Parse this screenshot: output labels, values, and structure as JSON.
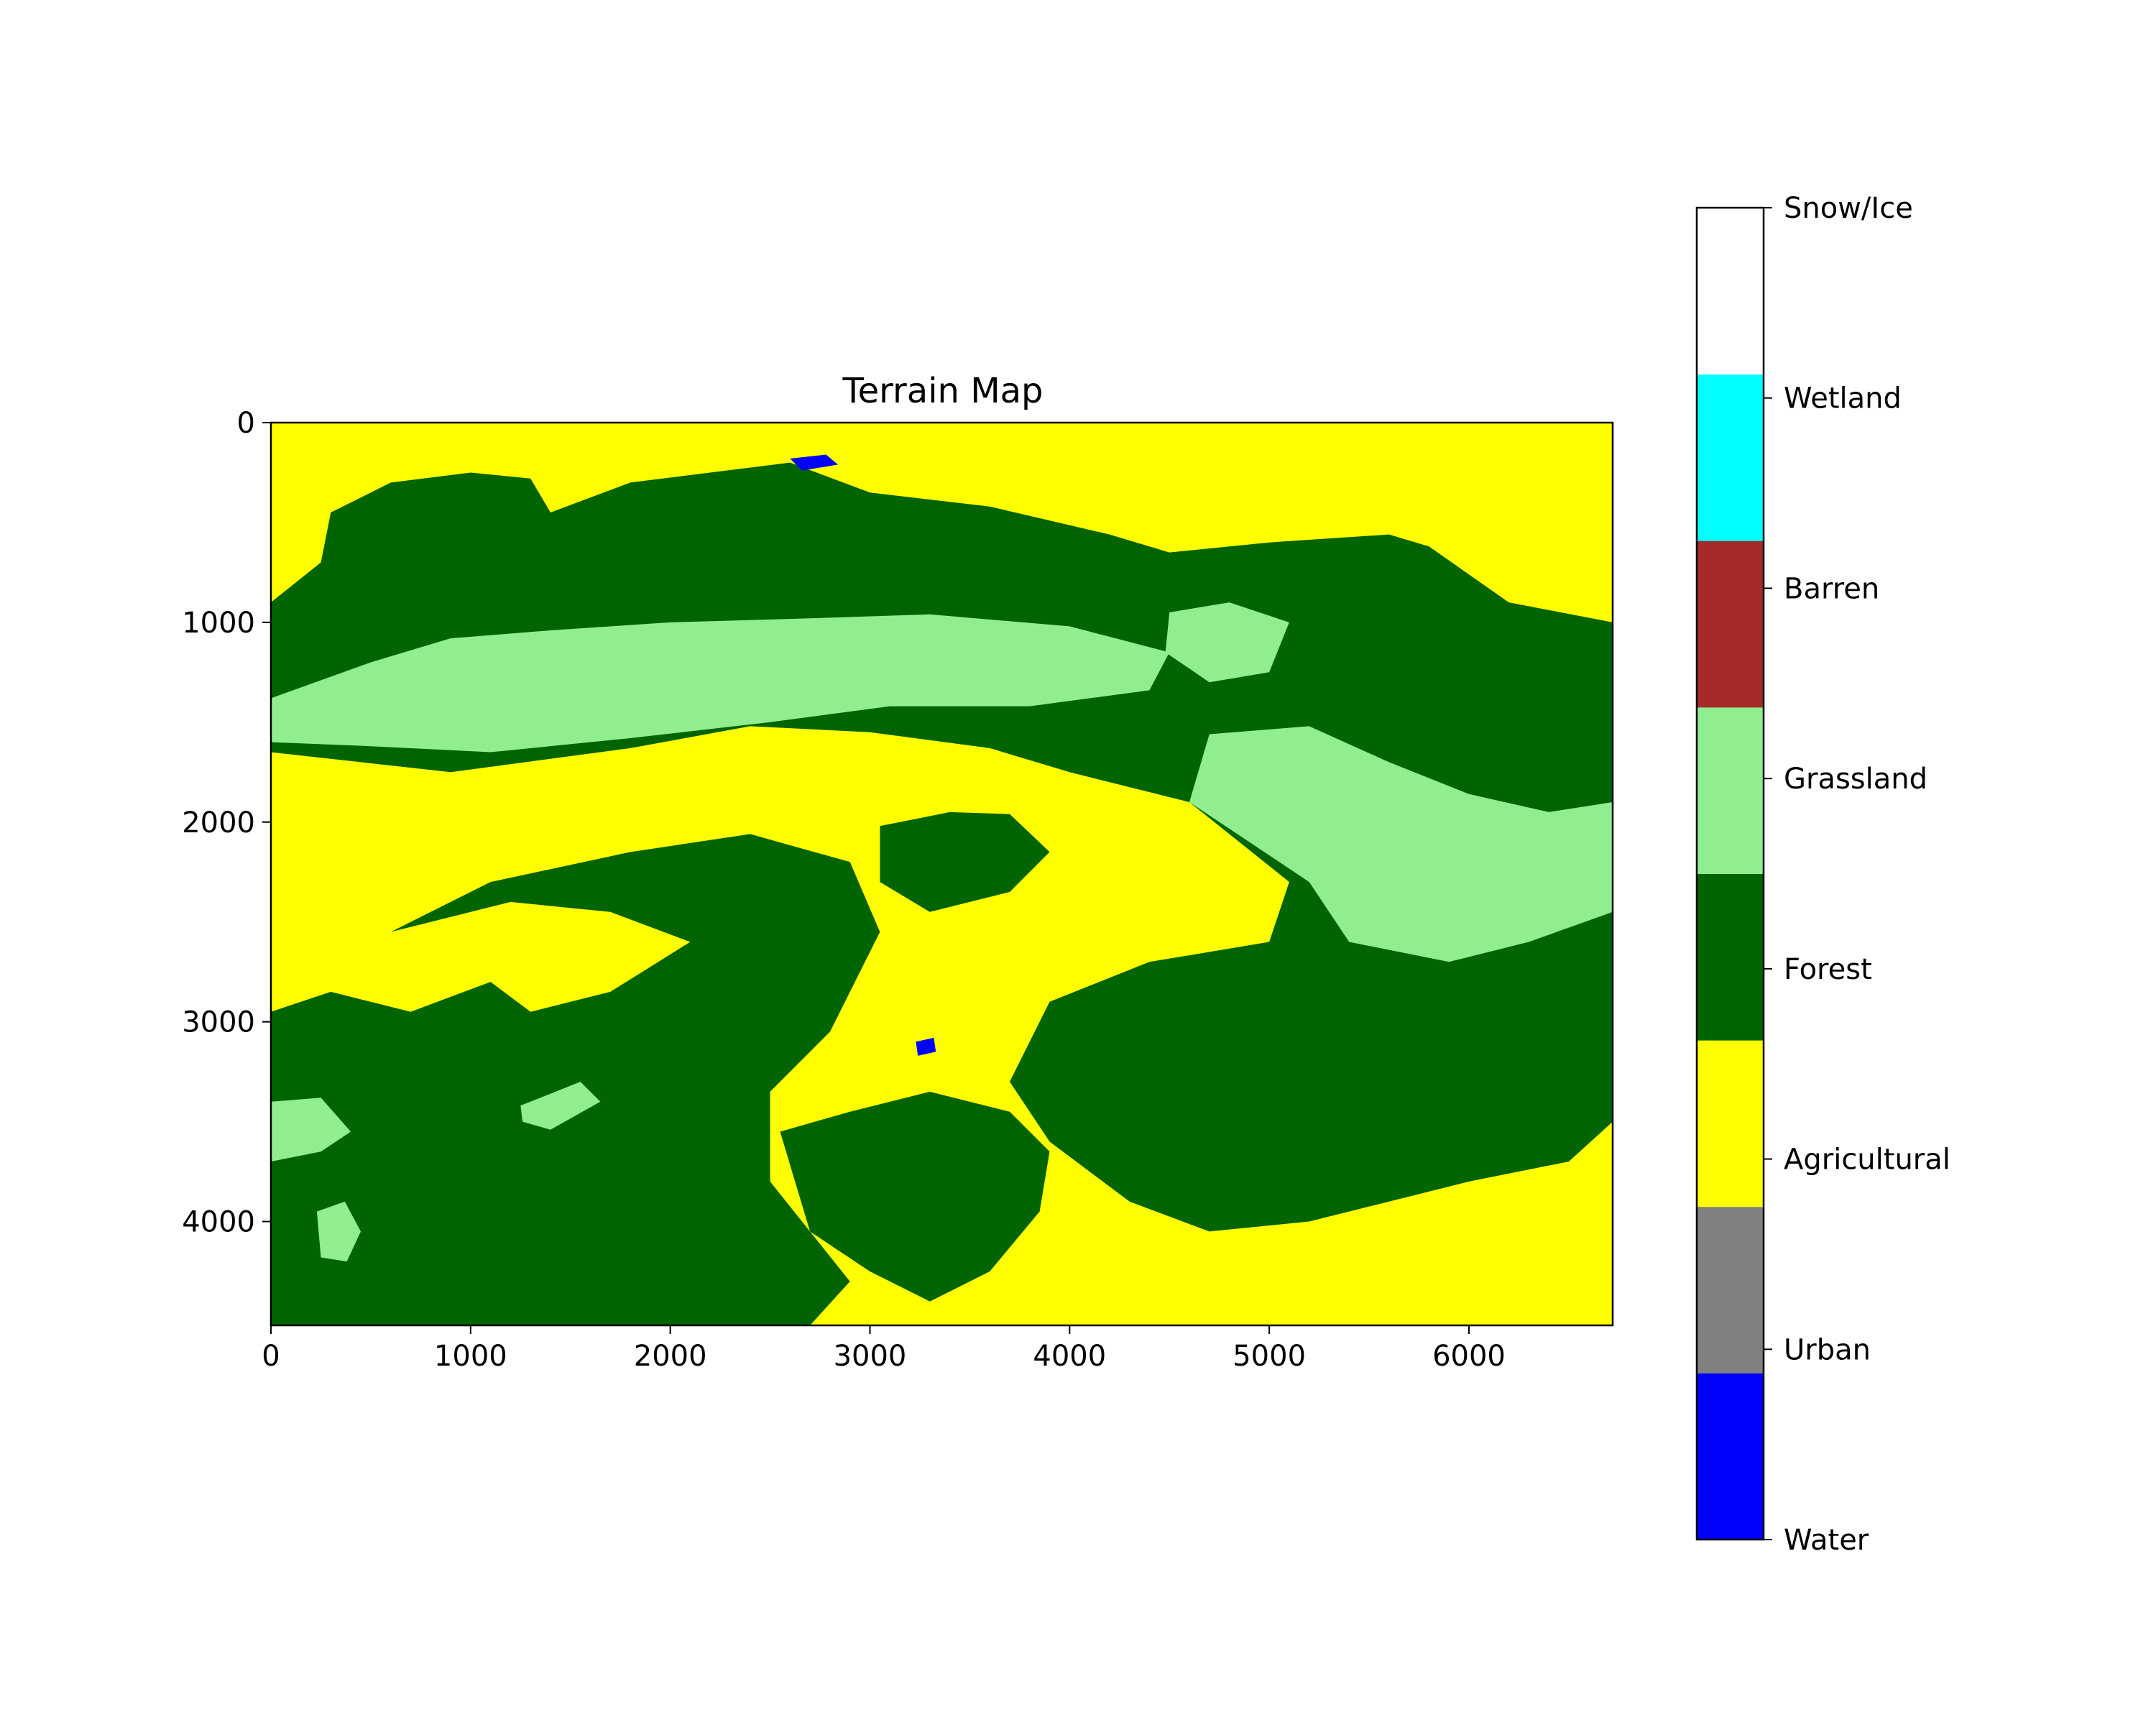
{
  "chart_data": {
    "type": "heatmap",
    "title": "Terrain Map",
    "xlabel": "",
    "ylabel": "",
    "xlim": [
      0,
      6720
    ],
    "ylim": [
      4520,
      0
    ],
    "x_ticks": [
      0,
      1000,
      2000,
      3000,
      4000,
      5000,
      6000
    ],
    "y_ticks": [
      0,
      1000,
      2000,
      3000,
      4000
    ],
    "x_tick_labels": [
      "0",
      "1000",
      "2000",
      "3000",
      "4000",
      "5000",
      "6000"
    ],
    "y_tick_labels": [
      "0",
      "1000",
      "2000",
      "3000",
      "4000"
    ],
    "grid": false,
    "colorbar": {
      "classes": [
        {
          "label": "Water",
          "color": "#0000ff"
        },
        {
          "label": "Urban",
          "color": "#808080"
        },
        {
          "label": "Agricultural",
          "color": "#ffff00"
        },
        {
          "label": "Forest",
          "color": "#006400"
        },
        {
          "label": "Grassland",
          "color": "#90ee90"
        },
        {
          "label": "Barren",
          "color": "#a52a2a"
        },
        {
          "label": "Wetland",
          "color": "#00ffff"
        },
        {
          "label": "Snow/Ice",
          "color": "#ffffff"
        }
      ]
    },
    "regions": [
      {
        "class": "Forest",
        "points": [
          [
            0,
            900
          ],
          [
            250,
            700
          ],
          [
            300,
            450
          ],
          [
            600,
            300
          ],
          [
            1000,
            250
          ],
          [
            1300,
            280
          ],
          [
            1400,
            450
          ],
          [
            1800,
            300
          ],
          [
            2600,
            200
          ],
          [
            3000,
            350
          ],
          [
            3600,
            420
          ],
          [
            4200,
            560
          ],
          [
            4500,
            650
          ],
          [
            5000,
            600
          ],
          [
            5600,
            560
          ],
          [
            5800,
            620
          ],
          [
            6200,
            900
          ],
          [
            6720,
            1000
          ],
          [
            6720,
            3500
          ],
          [
            6500,
            3700
          ],
          [
            6000,
            3800
          ],
          [
            5600,
            3900
          ],
          [
            5200,
            4000
          ],
          [
            4700,
            4050
          ],
          [
            4300,
            3900
          ],
          [
            3900,
            3600
          ],
          [
            3700,
            3300
          ],
          [
            3900,
            2900
          ],
          [
            4400,
            2700
          ],
          [
            5000,
            2600
          ],
          [
            5100,
            2300
          ],
          [
            4600,
            1900
          ],
          [
            4000,
            1750
          ],
          [
            3600,
            1630
          ],
          [
            3000,
            1550
          ],
          [
            2400,
            1520
          ],
          [
            1800,
            1630
          ],
          [
            900,
            1750
          ],
          [
            0,
            1650
          ]
        ]
      },
      {
        "class": "Forest",
        "points": [
          [
            600,
            2550
          ],
          [
            1100,
            2300
          ],
          [
            1800,
            2150
          ],
          [
            2400,
            2060
          ],
          [
            2900,
            2200
          ],
          [
            3050,
            2550
          ],
          [
            2800,
            3050
          ],
          [
            2500,
            3350
          ],
          [
            2500,
            3800
          ],
          [
            2700,
            4050
          ],
          [
            2900,
            4300
          ],
          [
            2700,
            4520
          ],
          [
            0,
            4520
          ],
          [
            0,
            2950
          ],
          [
            300,
            2850
          ],
          [
            700,
            2950
          ],
          [
            1100,
            2800
          ],
          [
            1300,
            2950
          ],
          [
            1700,
            2850
          ],
          [
            2100,
            2600
          ],
          [
            1700,
            2450
          ],
          [
            1200,
            2400
          ]
        ]
      },
      {
        "class": "Forest",
        "points": [
          [
            2550,
            3550
          ],
          [
            2900,
            3450
          ],
          [
            3300,
            3350
          ],
          [
            3700,
            3450
          ],
          [
            3900,
            3650
          ],
          [
            3850,
            3950
          ],
          [
            3600,
            4250
          ],
          [
            3300,
            4400
          ],
          [
            3000,
            4250
          ],
          [
            2700,
            4050
          ]
        ]
      },
      {
        "class": "Forest",
        "points": [
          [
            3050,
            2020
          ],
          [
            3400,
            1950
          ],
          [
            3700,
            1960
          ],
          [
            3900,
            2150
          ],
          [
            3700,
            2350
          ],
          [
            3300,
            2450
          ],
          [
            3050,
            2300
          ]
        ]
      },
      {
        "class": "Grassland",
        "points": [
          [
            0,
            1380
          ],
          [
            500,
            1200
          ],
          [
            900,
            1080
          ],
          [
            1400,
            1040
          ],
          [
            2000,
            1000
          ],
          [
            2700,
            980
          ],
          [
            3300,
            960
          ],
          [
            4000,
            1020
          ],
          [
            4500,
            1150
          ],
          [
            4400,
            1340
          ],
          [
            3800,
            1420
          ],
          [
            3100,
            1420
          ],
          [
            2500,
            1500
          ],
          [
            1800,
            1580
          ],
          [
            1100,
            1650
          ],
          [
            500,
            1620
          ],
          [
            0,
            1600
          ]
        ]
      },
      {
        "class": "Grassland",
        "points": [
          [
            4700,
            1560
          ],
          [
            5200,
            1520
          ],
          [
            5600,
            1700
          ],
          [
            6000,
            1860
          ],
          [
            6400,
            1950
          ],
          [
            6720,
            1900
          ],
          [
            6720,
            2450
          ],
          [
            6300,
            2600
          ],
          [
            5900,
            2700
          ],
          [
            5400,
            2600
          ],
          [
            5200,
            2300
          ],
          [
            4900,
            2100
          ],
          [
            4600,
            1900
          ]
        ]
      },
      {
        "class": "Grassland",
        "points": [
          [
            4500,
            950
          ],
          [
            4800,
            900
          ],
          [
            5100,
            1000
          ],
          [
            5000,
            1250
          ],
          [
            4700,
            1300
          ],
          [
            4480,
            1150
          ]
        ]
      },
      {
        "class": "Grassland",
        "points": [
          [
            0,
            3400
          ],
          [
            250,
            3380
          ],
          [
            400,
            3550
          ],
          [
            250,
            3650
          ],
          [
            0,
            3700
          ]
        ]
      },
      {
        "class": "Grassland",
        "points": [
          [
            230,
            3950
          ],
          [
            370,
            3900
          ],
          [
            450,
            4050
          ],
          [
            380,
            4200
          ],
          [
            250,
            4180
          ]
        ]
      },
      {
        "class": "Grassland",
        "points": [
          [
            1250,
            3420
          ],
          [
            1550,
            3300
          ],
          [
            1650,
            3400
          ],
          [
            1400,
            3540
          ],
          [
            1260,
            3500
          ]
        ]
      },
      {
        "class": "Water",
        "points": [
          [
            2600,
            180
          ],
          [
            2780,
            160
          ],
          [
            2840,
            210
          ],
          [
            2660,
            240
          ]
        ]
      },
      {
        "class": "Water",
        "points": [
          [
            3230,
            3100
          ],
          [
            3320,
            3080
          ],
          [
            3330,
            3150
          ],
          [
            3240,
            3170
          ]
        ]
      }
    ]
  }
}
